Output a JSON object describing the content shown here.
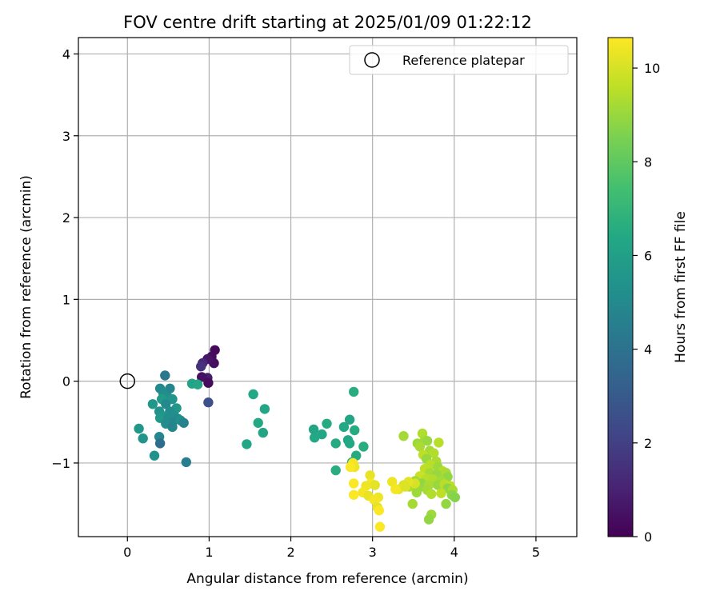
{
  "chart_data": {
    "type": "scatter",
    "title": "FOV centre drift starting at 2025/01/09 01:22:12",
    "xlabel": "Angular distance from reference (arcmin)",
    "ylabel": "Rotation from reference (arcmin)",
    "xlim": [
      -0.6,
      5.5
    ],
    "ylim": [
      -1.9,
      4.2
    ],
    "xticks": [
      0,
      1,
      2,
      3,
      4,
      5
    ],
    "yticks": [
      -1,
      0,
      1,
      2,
      3,
      4
    ],
    "xtick_labels": [
      "0",
      "1",
      "2",
      "3",
      "4",
      "5"
    ],
    "ytick_labels": [
      "−1",
      "0",
      "1",
      "2",
      "3",
      "4"
    ],
    "grid": true,
    "legend": {
      "position": "top-right",
      "entries": [
        "Reference platepar"
      ]
    },
    "reference_point": {
      "x": 0,
      "y": 0,
      "label": "Reference platepar"
    },
    "colorbar": {
      "label": "Hours from first FF file",
      "min": 0,
      "max": 10.65,
      "ticks": [
        0,
        2,
        4,
        6,
        8,
        10
      ],
      "tick_labels": [
        "0",
        "2",
        "4",
        "6",
        "8",
        "10"
      ],
      "colormap": "viridis"
    },
    "points": [
      [
        1.07,
        0.38,
        0.2
      ],
      [
        1.03,
        0.3,
        0.3
      ],
      [
        1.06,
        0.22,
        0.4
      ],
      [
        0.98,
        0.27,
        0.6
      ],
      [
        0.98,
        0.04,
        0.8
      ],
      [
        0.91,
        0.05,
        0.5
      ],
      [
        0.92,
        0.22,
        1.2
      ],
      [
        0.9,
        0.18,
        1.5
      ],
      [
        0.99,
        -0.02,
        0.3
      ],
      [
        0.99,
        -0.26,
        2.6
      ],
      [
        0.46,
        0.07,
        4.2
      ],
      [
        0.4,
        -0.09,
        5.0
      ],
      [
        0.52,
        -0.09,
        4.8
      ],
      [
        0.44,
        -0.15,
        5.2
      ],
      [
        0.5,
        -0.2,
        5.3
      ],
      [
        0.42,
        -0.22,
        5.8
      ],
      [
        0.55,
        -0.22,
        5.5
      ],
      [
        0.31,
        -0.28,
        5.6
      ],
      [
        0.47,
        -0.28,
        5.0
      ],
      [
        0.6,
        -0.33,
        5.6
      ],
      [
        0.39,
        -0.37,
        5.4
      ],
      [
        0.52,
        -0.37,
        5.1
      ],
      [
        0.45,
        -0.43,
        5.5
      ],
      [
        0.58,
        -0.43,
        5.3
      ],
      [
        0.4,
        -0.45,
        5.7
      ],
      [
        0.5,
        -0.45,
        5.2
      ],
      [
        0.62,
        -0.46,
        5.0
      ],
      [
        0.55,
        -0.5,
        4.9
      ],
      [
        0.65,
        -0.48,
        5.3
      ],
      [
        0.69,
        -0.51,
        4.7
      ],
      [
        0.47,
        -0.52,
        5.1
      ],
      [
        0.55,
        -0.56,
        4.8
      ],
      [
        0.14,
        -0.58,
        5.6
      ],
      [
        0.19,
        -0.7,
        5.5
      ],
      [
        0.39,
        -0.68,
        4.9
      ],
      [
        0.4,
        -0.76,
        3.8
      ],
      [
        0.33,
        -0.91,
        5.4
      ],
      [
        0.72,
        -0.99,
        4.5
      ],
      [
        0.79,
        -0.03,
        6.1
      ],
      [
        0.86,
        -0.04,
        6.3
      ],
      [
        1.54,
        -0.16,
        6.4
      ],
      [
        1.68,
        -0.34,
        6.3
      ],
      [
        1.6,
        -0.51,
        6.4
      ],
      [
        1.66,
        -0.63,
        6.2
      ],
      [
        1.46,
        -0.77,
        6.3
      ],
      [
        2.77,
        -0.13,
        6.6
      ],
      [
        2.72,
        -0.47,
        6.2
      ],
      [
        2.44,
        -0.52,
        6.5
      ],
      [
        2.65,
        -0.56,
        6.4
      ],
      [
        2.78,
        -0.6,
        6.5
      ],
      [
        2.28,
        -0.59,
        6.2
      ],
      [
        2.38,
        -0.65,
        6.3
      ],
      [
        2.29,
        -0.69,
        6.4
      ],
      [
        2.55,
        -0.76,
        6.5
      ],
      [
        2.7,
        -0.72,
        6.3
      ],
      [
        2.72,
        -0.76,
        6.4
      ],
      [
        2.89,
        -0.8,
        6.6
      ],
      [
        2.8,
        -0.91,
        6.5
      ],
      [
        2.75,
        -0.99,
        6.7
      ],
      [
        2.55,
        -1.09,
        6.6
      ],
      [
        3.38,
        -0.67,
        9.2
      ],
      [
        3.61,
        -0.64,
        9.4
      ],
      [
        3.64,
        -0.72,
        9.3
      ],
      [
        3.67,
        -0.73,
        9.0
      ],
      [
        3.55,
        -0.76,
        9.1
      ],
      [
        3.81,
        -0.75,
        9.5
      ],
      [
        3.58,
        -0.8,
        9.3
      ],
      [
        3.7,
        -0.85,
        9.2
      ],
      [
        3.62,
        -0.9,
        9.6
      ],
      [
        3.75,
        -0.88,
        9.4
      ],
      [
        3.66,
        -0.95,
        9.0
      ],
      [
        3.78,
        -0.98,
        9.3
      ],
      [
        3.71,
        -1.02,
        9.5
      ],
      [
        3.8,
        -1.05,
        9.1
      ],
      [
        3.64,
        -1.07,
        9.6
      ],
      [
        3.86,
        -1.1,
        9.4
      ],
      [
        3.7,
        -1.12,
        9.2
      ],
      [
        3.79,
        -1.14,
        9.0
      ],
      [
        3.9,
        -1.12,
        9.3
      ],
      [
        3.92,
        -1.17,
        8.9
      ],
      [
        3.58,
        -1.16,
        9.8
      ],
      [
        3.66,
        -1.19,
        9.5
      ],
      [
        3.74,
        -1.2,
        9.4
      ],
      [
        3.84,
        -1.22,
        9.2
      ],
      [
        3.52,
        -1.22,
        9.1
      ],
      [
        3.6,
        -1.25,
        8.9
      ],
      [
        3.69,
        -1.27,
        9.3
      ],
      [
        3.8,
        -1.27,
        9.0
      ],
      [
        3.88,
        -1.26,
        9.5
      ],
      [
        3.95,
        -1.28,
        9.6
      ],
      [
        3.45,
        -1.29,
        9.4
      ],
      [
        3.56,
        -1.31,
        9.0
      ],
      [
        3.67,
        -1.33,
        9.2
      ],
      [
        3.92,
        -1.31,
        8.8
      ],
      [
        3.98,
        -1.33,
        9.3
      ],
      [
        3.54,
        -1.36,
        9.1
      ],
      [
        3.72,
        -1.38,
        9.4
      ],
      [
        3.84,
        -1.37,
        9.6
      ],
      [
        3.97,
        -1.39,
        8.8
      ],
      [
        4.01,
        -1.42,
        8.7
      ],
      [
        3.9,
        -1.5,
        8.9
      ],
      [
        3.49,
        -1.5,
        9.2
      ],
      [
        3.72,
        -1.63,
        9.1
      ],
      [
        3.69,
        -1.69,
        8.9
      ],
      [
        3.52,
        -1.25,
        10.0
      ],
      [
        3.44,
        -1.23,
        10.2
      ],
      [
        3.38,
        -1.27,
        10.1
      ],
      [
        3.32,
        -1.32,
        10.3
      ],
      [
        3.24,
        -1.23,
        10.4
      ],
      [
        3.28,
        -1.32,
        10.5
      ],
      [
        3.4,
        -1.29,
        10.1
      ],
      [
        2.76,
        -1.0,
        10.5
      ],
      [
        2.78,
        -1.05,
        10.4
      ],
      [
        2.73,
        -1.05,
        10.6
      ],
      [
        2.97,
        -1.15,
        10.3
      ],
      [
        2.98,
        -1.25,
        10.5
      ],
      [
        3.03,
        -1.27,
        10.2
      ],
      [
        2.92,
        -1.28,
        10.4
      ],
      [
        2.77,
        -1.25,
        10.6
      ],
      [
        2.88,
        -1.36,
        10.5
      ],
      [
        2.95,
        -1.4,
        10.3
      ],
      [
        3.07,
        -1.42,
        10.4
      ],
      [
        2.77,
        -1.39,
        10.6
      ],
      [
        3.02,
        -1.45,
        10.5
      ],
      [
        3.06,
        -1.54,
        10.3
      ],
      [
        3.08,
        -1.58,
        10.6
      ],
      [
        3.09,
        -1.78,
        10.6
      ]
    ]
  }
}
